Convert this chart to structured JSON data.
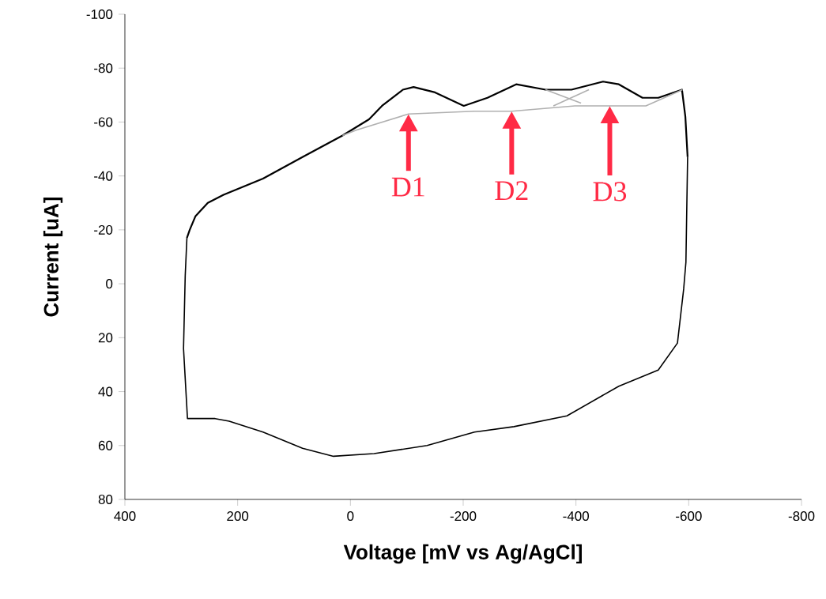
{
  "chart_data": {
    "type": "line",
    "xlabel": "Voltage [mV vs Ag/AgCl]",
    "ylabel": "Current [uA]",
    "xlim": [
      400,
      -800
    ],
    "ylim": [
      80,
      -100
    ],
    "xticks": [
      400,
      200,
      0,
      -200,
      -400,
      -600,
      -800
    ],
    "yticks": [
      -100,
      -80,
      -60,
      -40,
      -20,
      0,
      20,
      40,
      60,
      80
    ],
    "grid": false,
    "marker": "none",
    "series": [
      {
        "color": "#000000",
        "x": [
          290,
          285,
          275,
          253,
          225,
          155,
          85,
          14,
          -33,
          -56,
          -93,
          -112,
          -150,
          -201,
          -243,
          -294,
          -346,
          -392,
          -448,
          -476,
          -518,
          -546,
          -588,
          -594,
          -598
        ],
        "values": [
          -17,
          -20,
          -25,
          -30,
          -33,
          -39,
          -47,
          -55,
          -61,
          -66,
          -72,
          -73,
          -71,
          -66,
          -69,
          -74,
          -72,
          -72,
          -75,
          -74,
          -69,
          -69,
          -72,
          -62,
          -47
        ]
      },
      {
        "color": "#000000",
        "x": [
          -598,
          -595,
          -591,
          -580,
          -546,
          -476,
          -384,
          -290,
          -220,
          -136,
          -42,
          30,
          85,
          155,
          215,
          240,
          289,
          296,
          293,
          290
        ],
        "values": [
          -47,
          -8,
          2,
          22,
          32,
          38,
          49,
          53,
          55,
          60,
          63,
          64,
          61,
          55,
          51,
          50,
          50,
          24,
          -3,
          -17
        ]
      },
      {
        "color": "#b0b0b0",
        "x": [
          14,
          -10,
          -103,
          -220,
          -286,
          -398,
          -524,
          -589
        ],
        "values": [
          -55,
          -57,
          -63,
          -64,
          -64,
          -66,
          -66,
          -72
        ]
      },
      {
        "color": "#b0b0b0",
        "x": [
          -346,
          -409
        ],
        "values": [
          -72,
          -67
        ]
      },
      {
        "color": "#b0b0b0",
        "x": [
          -360,
          -423
        ],
        "values": [
          -66,
          -72
        ]
      }
    ],
    "annotations": [
      {
        "text": "D1",
        "x": -103,
        "y": -63
      },
      {
        "text": "D2",
        "x": -286,
        "y": -64
      },
      {
        "text": "D3",
        "x": -460,
        "y": -66
      }
    ]
  }
}
